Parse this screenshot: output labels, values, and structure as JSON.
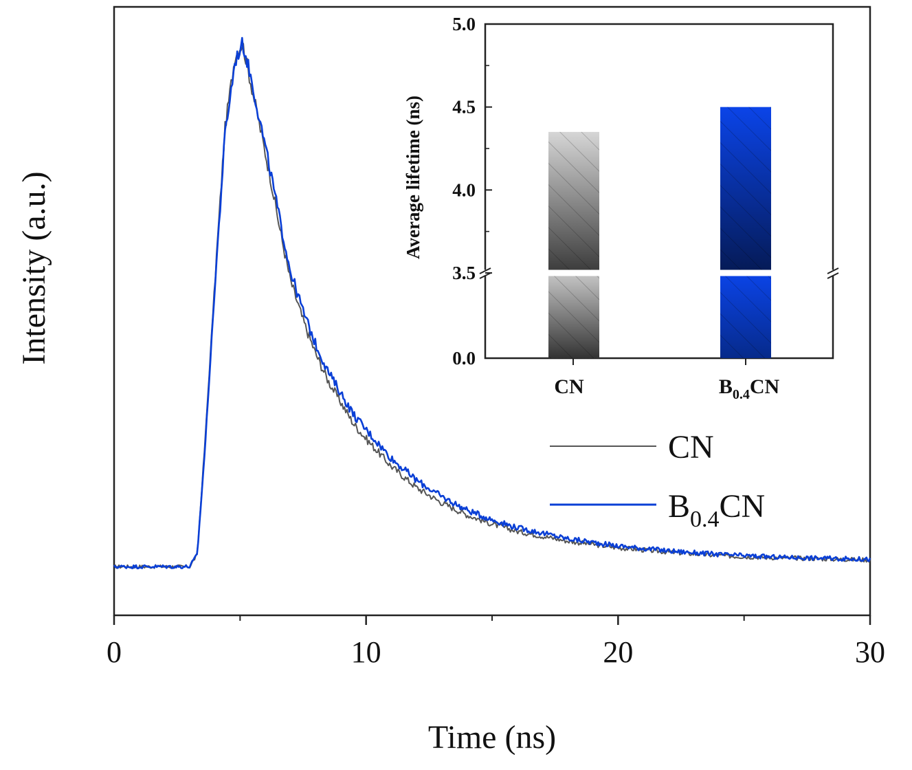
{
  "chart_data": [
    {
      "type": "line",
      "title": "",
      "xlabel": "Time (ns)",
      "ylabel": "Intensity (a.u.)",
      "xlim": [
        0,
        30
      ],
      "ylim": [
        0,
        1.0
      ],
      "x_ticks": [
        0,
        10,
        20,
        30
      ],
      "x_tick_labels": [
        "0",
        "10",
        "20",
        "30"
      ],
      "y_ticks_shown": false,
      "grid": false,
      "legend": "right",
      "series": [
        {
          "name": "CN",
          "color": "#555555",
          "x": [
            0,
            3.0,
            3.3,
            3.6,
            4.0,
            4.4,
            4.8,
            5.1,
            5.4,
            5.8,
            6.2,
            6.6,
            7.0,
            7.5,
            8.0,
            8.5,
            9.0,
            9.5,
            10,
            11,
            12,
            13,
            14,
            15,
            16,
            18,
            20,
            22,
            24,
            26,
            28,
            30
          ],
          "values": [
            0.08,
            0.08,
            0.1,
            0.28,
            0.55,
            0.8,
            0.92,
            0.94,
            0.88,
            0.8,
            0.72,
            0.63,
            0.55,
            0.485,
            0.43,
            0.385,
            0.35,
            0.315,
            0.29,
            0.245,
            0.21,
            0.185,
            0.165,
            0.15,
            0.138,
            0.122,
            0.111,
            0.104,
            0.098,
            0.095,
            0.093,
            0.091
          ]
        },
        {
          "name": "B0.4CN",
          "name_main": "B",
          "name_sub": "0.4",
          "name_suffix": "CN",
          "color": "#0a3fd6",
          "x": [
            0,
            3.0,
            3.3,
            3.6,
            4.0,
            4.4,
            4.8,
            5.1,
            5.4,
            5.8,
            6.2,
            6.6,
            7.0,
            7.5,
            8.0,
            8.5,
            9.0,
            9.5,
            10,
            11,
            12,
            13,
            14,
            15,
            16,
            18,
            20,
            22,
            24,
            26,
            28,
            30
          ],
          "values": [
            0.08,
            0.08,
            0.1,
            0.27,
            0.54,
            0.79,
            0.91,
            0.94,
            0.89,
            0.81,
            0.73,
            0.645,
            0.565,
            0.5,
            0.445,
            0.4,
            0.365,
            0.33,
            0.305,
            0.258,
            0.222,
            0.195,
            0.173,
            0.157,
            0.144,
            0.126,
            0.114,
            0.106,
            0.1,
            0.096,
            0.094,
            0.092
          ]
        }
      ]
    },
    {
      "type": "bar",
      "title": "",
      "xlabel": "",
      "ylabel": "Average lifetime (ns)",
      "categories": [
        "CN",
        "B0.4CN"
      ],
      "category_labels": [
        {
          "main": "CN",
          "sub": "",
          "suffix": ""
        },
        {
          "main": "B",
          "sub": "0.4",
          "suffix": "CN"
        }
      ],
      "values": [
        4.35,
        4.5
      ],
      "colors": [
        "#9a9a9a",
        "#0a3fd6"
      ],
      "ylim": [
        0.0,
        5.0
      ],
      "axis_break": [
        0.0,
        3.5
      ],
      "y_ticks": [
        0.0,
        3.5,
        4.0,
        4.5,
        5.0
      ],
      "y_tick_labels": [
        "0.0",
        "3.5",
        "4.0",
        "4.5",
        "5.0"
      ],
      "grid": false
    }
  ]
}
